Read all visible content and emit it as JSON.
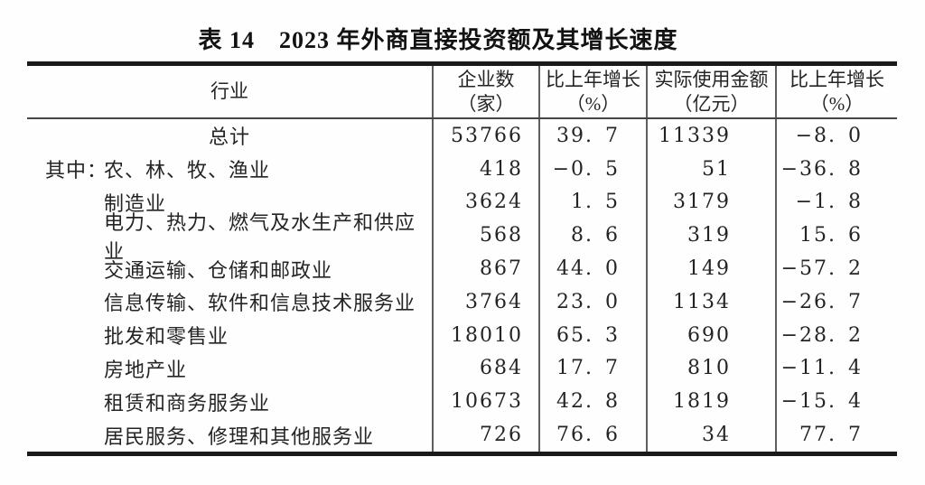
{
  "title": "表 14　2023 年外商直接投资额及其增长速度",
  "table": {
    "columns": [
      {
        "name": "industry",
        "lines": [
          "行业"
        ]
      },
      {
        "name": "enterprise-count",
        "lines": [
          "企业数",
          "（家）"
        ]
      },
      {
        "name": "growth-vs-prev-year",
        "lines": [
          "比上年增长",
          "（%）"
        ]
      },
      {
        "name": "amount-actually-used",
        "lines": [
          "实际使用金额",
          "（亿元）"
        ]
      },
      {
        "name": "growth-vs-prev-year",
        "lines": [
          "比上年增长",
          "（%）"
        ]
      }
    ],
    "rows": [
      {
        "prefix": "",
        "industry": "总计",
        "center": true,
        "values": [
          "53766",
          "39.7",
          "11339",
          "-8.0"
        ]
      },
      {
        "prefix": "其中：",
        "industry": "农、林、牧、渔业",
        "center": false,
        "values": [
          "418",
          "-0.5",
          "51",
          "-36.8"
        ]
      },
      {
        "prefix": "",
        "industry": "制造业",
        "center": false,
        "values": [
          "3624",
          "1.5",
          "3179",
          "-1.8"
        ]
      },
      {
        "prefix": "",
        "industry": "电力、热力、燃气及水生产和供应业",
        "center": false,
        "values": [
          "568",
          "8.6",
          "319",
          "15.6"
        ]
      },
      {
        "prefix": "",
        "industry": "交通运输、仓储和邮政业",
        "center": false,
        "values": [
          "867",
          "44.0",
          "149",
          "-57.2"
        ]
      },
      {
        "prefix": "",
        "industry": "信息传输、软件和信息技术服务业",
        "center": false,
        "values": [
          "3764",
          "23.0",
          "1134",
          "-26.7"
        ]
      },
      {
        "prefix": "",
        "industry": "批发和零售业",
        "center": false,
        "values": [
          "18010",
          "65.3",
          "690",
          "-28.2"
        ]
      },
      {
        "prefix": "",
        "industry": "房地产业",
        "center": false,
        "values": [
          "684",
          "17.7",
          "810",
          "-11.4"
        ]
      },
      {
        "prefix": "",
        "industry": "租赁和商务服务业",
        "center": false,
        "values": [
          "10673",
          "42.8",
          "1819",
          "-15.4"
        ]
      },
      {
        "prefix": "",
        "industry": "居民服务、修理和其他服务业",
        "center": false,
        "values": [
          "726",
          "76.6",
          "34",
          "77.7"
        ]
      }
    ]
  },
  "colors": {
    "text": "#242424",
    "title_text": "#121212",
    "thick_rule": "#1a1a1a",
    "thin_rule": "#454545",
    "column_separator": "#5f5f5f",
    "background": "#fefefe"
  }
}
